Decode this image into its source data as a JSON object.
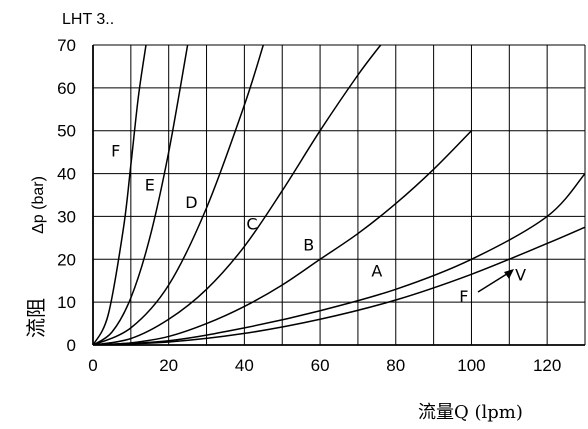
{
  "chart_data": {
    "type": "line",
    "title": "LHT 3..",
    "xlabel": "流量Q (lpm)",
    "ylabel": "Δp (bar)",
    "ylabel_cn": "流阻",
    "xlim": [
      0,
      130
    ],
    "ylim": [
      0,
      70
    ],
    "x_ticks": [
      0,
      20,
      40,
      60,
      80,
      100,
      120
    ],
    "y_ticks": [
      0,
      10,
      20,
      30,
      40,
      50,
      60,
      70
    ],
    "grid": true,
    "series": [
      {
        "name": "F",
        "x": [
          0,
          4,
          8,
          10,
          12,
          14
        ],
        "y": [
          0,
          7,
          27,
          42,
          58,
          70
        ]
      },
      {
        "name": "E",
        "x": [
          0,
          5,
          10,
          15,
          20,
          25
        ],
        "y": [
          0,
          3,
          11,
          25,
          45,
          70
        ]
      },
      {
        "name": "D",
        "x": [
          0,
          10,
          20,
          30,
          40,
          45
        ],
        "y": [
          0,
          4,
          14,
          32,
          56,
          70
        ]
      },
      {
        "name": "C",
        "x": [
          0,
          10,
          20,
          30,
          40,
          50,
          60,
          70,
          76
        ],
        "y": [
          0,
          1.5,
          6,
          13,
          23,
          36,
          50,
          63,
          70
        ]
      },
      {
        "name": "B",
        "x": [
          0,
          10,
          20,
          30,
          40,
          50,
          60,
          70,
          80,
          90,
          100
        ],
        "y": [
          0,
          0.5,
          2,
          5,
          9,
          14,
          20,
          26,
          33,
          41,
          50
        ]
      },
      {
        "name": "A",
        "x": [
          0,
          20,
          40,
          60,
          80,
          100,
          120,
          130
        ],
        "y": [
          0,
          1,
          4,
          8,
          13,
          20,
          30,
          40
        ]
      },
      {
        "name": "V",
        "x": [
          0,
          20,
          40,
          60,
          80,
          100,
          120,
          130
        ],
        "y": [
          0,
          0.7,
          2.7,
          6,
          10.5,
          16.5,
          23.7,
          27.5
        ]
      }
    ],
    "annotations": [
      {
        "text": "F",
        "x": 6,
        "y": 44
      },
      {
        "text": "E",
        "x": 15,
        "y": 36
      },
      {
        "text": "D",
        "x": 26,
        "y": 32
      },
      {
        "text": "C",
        "x": 42,
        "y": 27
      },
      {
        "text": "B",
        "x": 57,
        "y": 22
      },
      {
        "text": "A",
        "x": 75,
        "y": 16
      },
      {
        "text": "F",
        "x": 98,
        "y": 10
      },
      {
        "text": "V",
        "x": 113,
        "y": 15
      }
    ]
  },
  "colors": {
    "line": "#000000",
    "grid": "#000000",
    "background": "#ffffff"
  }
}
